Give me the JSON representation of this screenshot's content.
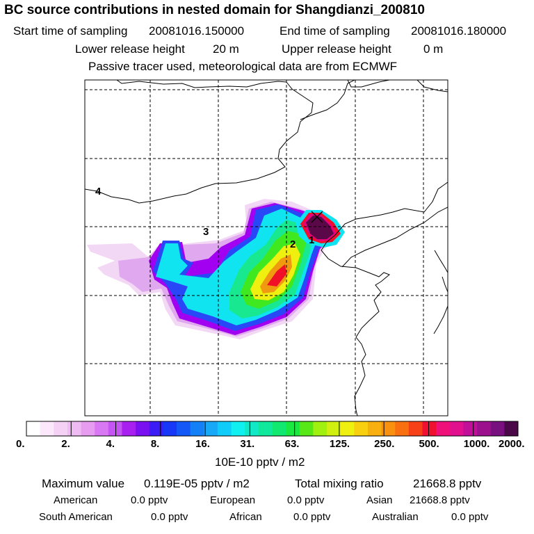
{
  "title": "BC  source contributions in nested domain for Shangdianzi_200810",
  "sampling": {
    "start_label": "Start time of sampling",
    "start_value": "20081016.150000",
    "end_label": "End time of sampling",
    "end_value": "20081016.180000"
  },
  "release": {
    "lower_label": "Lower release height",
    "lower_value": "20 m",
    "upper_label": "Upper release height",
    "upper_value": "0 m"
  },
  "tracer_note": "Passive tracer used, meteorological data are from ECMWF",
  "map": {
    "region_labels": [
      "1",
      "2",
      "3",
      "4"
    ],
    "receptor_marker": "x-marker",
    "plume_colors": {
      "faint": "#f3d8f5",
      "light": "#e0a8ee",
      "violet": "#a200f0",
      "blue": "#2848f8",
      "lightblue": "#1aa0f8",
      "cyan": "#10e4f0",
      "teal": "#18e890",
      "green": "#40e820",
      "yellow": "#f0f010",
      "orange": "#f09a10",
      "red": "#f01028",
      "magenta": "#e8007a",
      "darkpurple": "#5a0848"
    }
  },
  "colorbar": {
    "tick_labels": [
      "0.",
      "2.",
      "4.",
      "8.",
      "16.",
      "31.",
      "63.",
      "125.",
      "250.",
      "500.",
      "1000.",
      "2000."
    ],
    "unit_label": "10E-10 pptv / m2",
    "colors": [
      "#ffffff",
      "#fbe8fb",
      "#f5d2f5",
      "#eebcf2",
      "#e79cf0",
      "#d878f2",
      "#c455f2",
      "#a820f0",
      "#7a10f2",
      "#3c1cf4",
      "#1838f8",
      "#1458f8",
      "#1480f8",
      "#18a8f8",
      "#10ccf8",
      "#10f0f0",
      "#10e8c8",
      "#10e89c",
      "#10e870",
      "#18e840",
      "#58e818",
      "#a0f010",
      "#d0f010",
      "#f0f010",
      "#f8d010",
      "#f8b010",
      "#f89010",
      "#f87010",
      "#f84018",
      "#f01030",
      "#f0107a",
      "#e0108e",
      "#c0109a",
      "#9c108e",
      "#781080",
      "#4a0848"
    ]
  },
  "stats": {
    "max_label": "Maximum value",
    "max_value": "0.119E-05 pptv / m2",
    "total_label": "Total mixing ratio",
    "total_value": "21668.8 pptv"
  },
  "contributions": [
    {
      "name": "American",
      "value": "0.0 pptv"
    },
    {
      "name": "European",
      "value": "0.0 pptv"
    },
    {
      "name": "Asian",
      "value": "21668.8 pptv"
    },
    {
      "name": "South American",
      "value": "0.0 pptv"
    },
    {
      "name": "African",
      "value": "0.0 pptv"
    },
    {
      "name": "Australian",
      "value": "0.0 pptv"
    }
  ]
}
